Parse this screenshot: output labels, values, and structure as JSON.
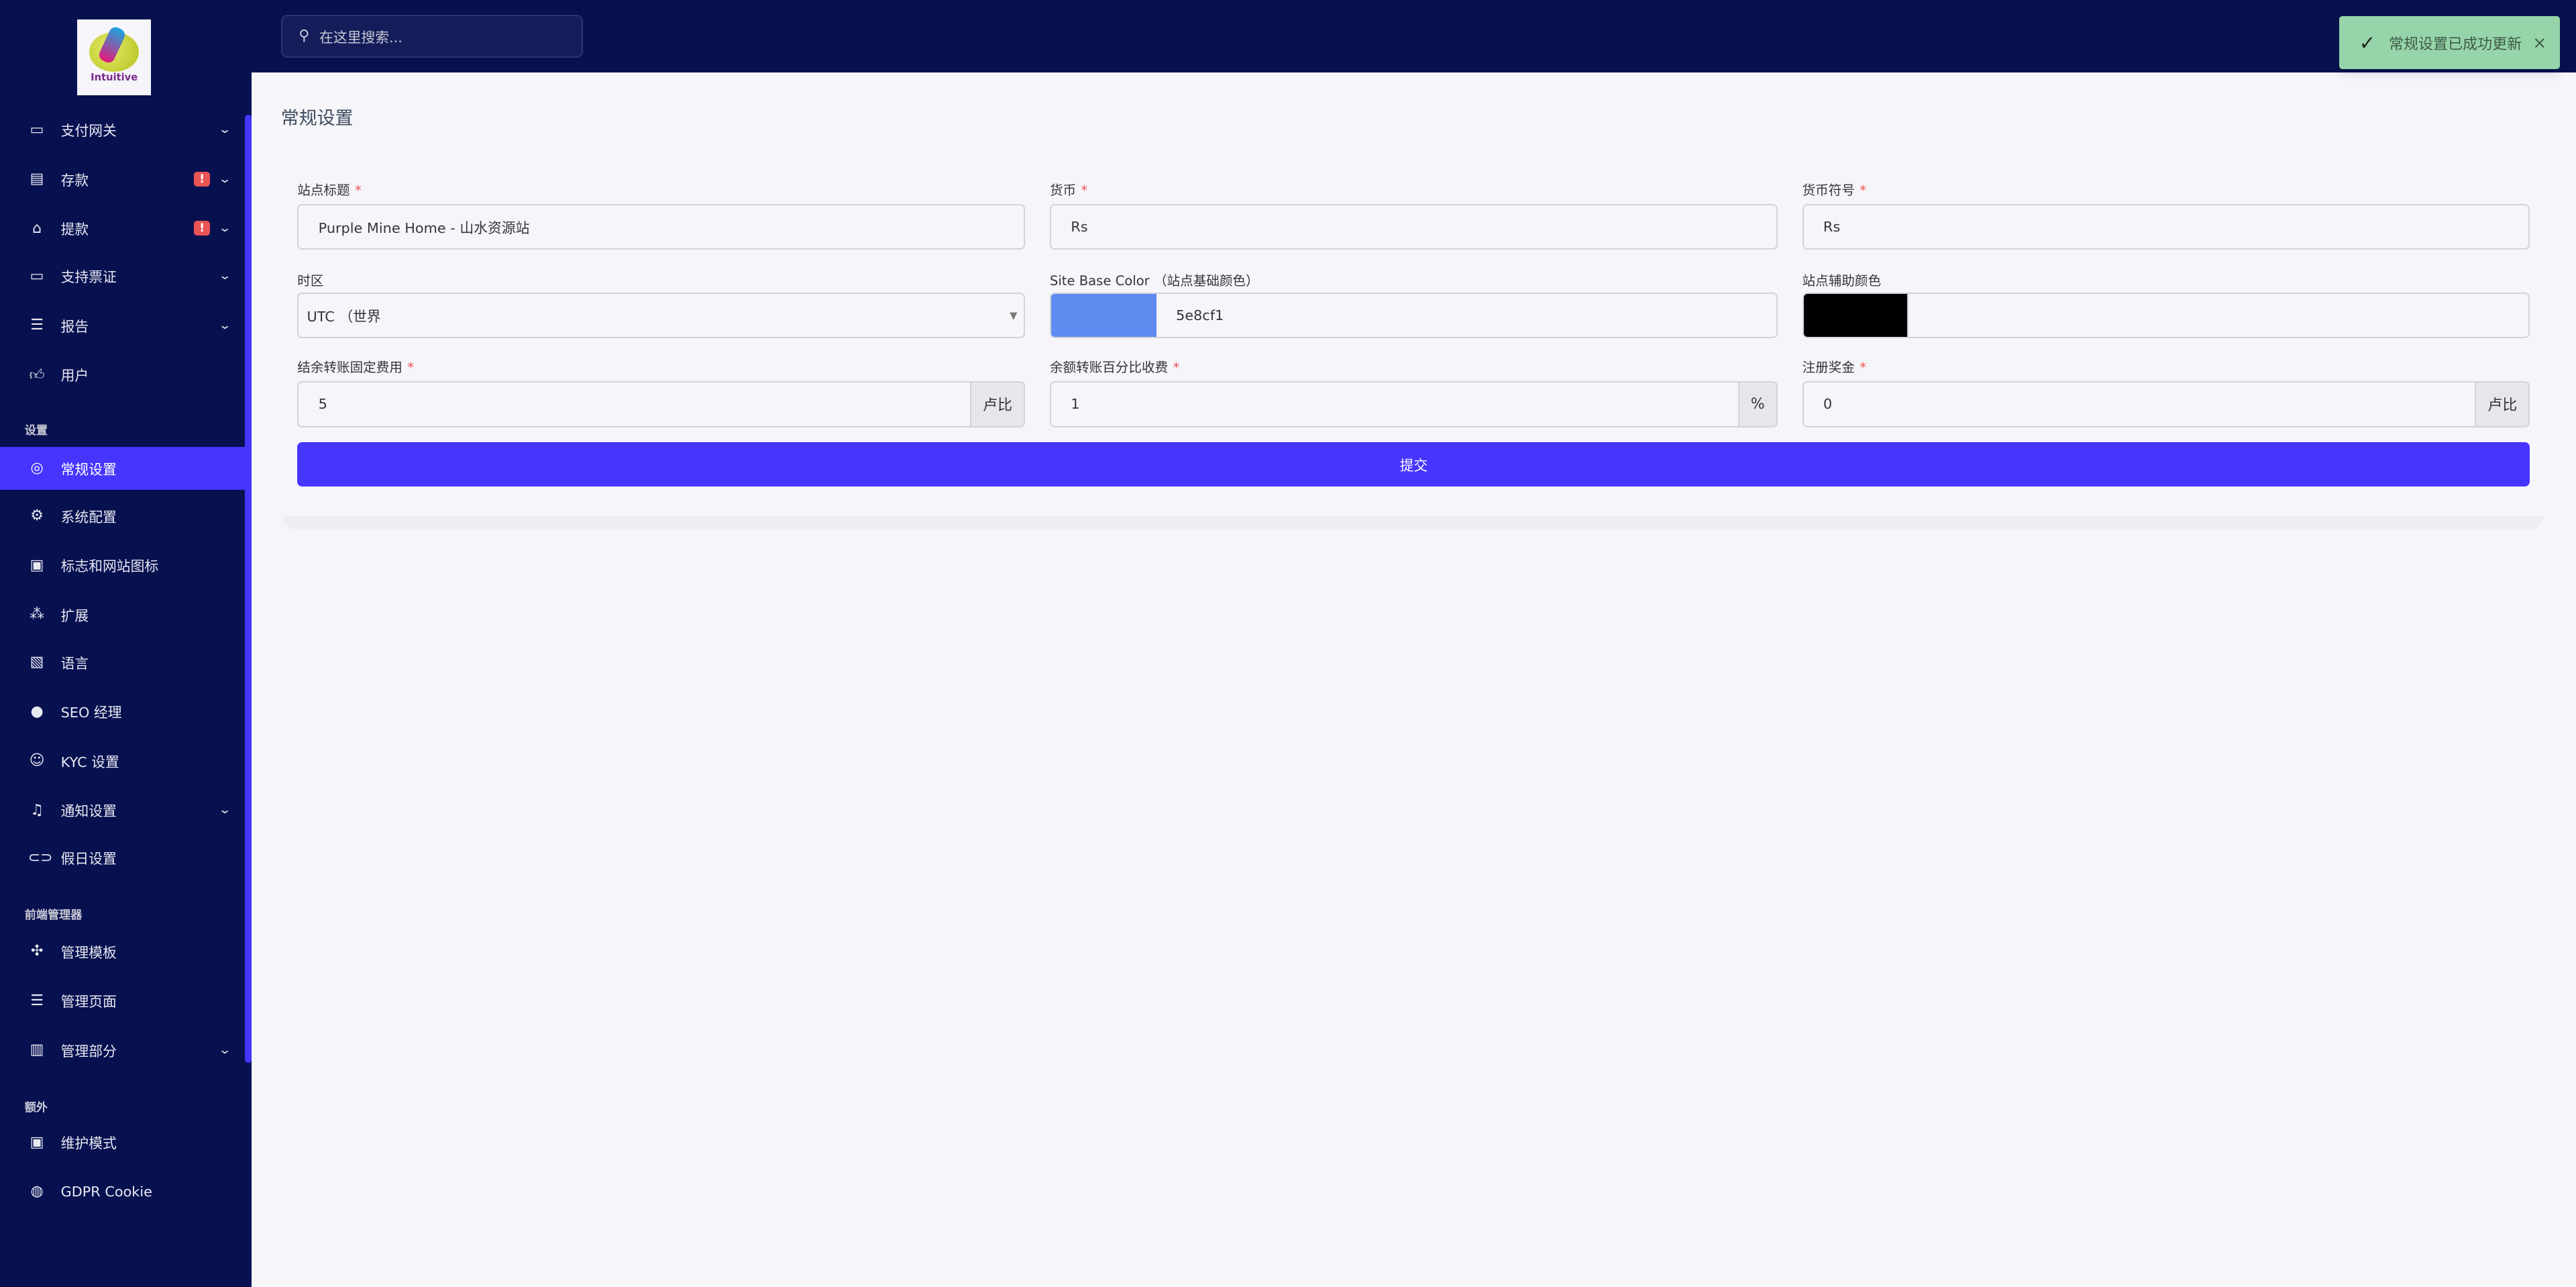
{
  "logo": {
    "text": "Intuitive"
  },
  "header": {
    "search_placeholder": "在这里搜索...",
    "search_icon": "search-icon"
  },
  "toast": {
    "message": "常规设置已成功更新",
    "icon": "check-icon",
    "close": "×",
    "color": "#95d5a9"
  },
  "sidebar": {
    "items": [
      {
        "label": "支付网关",
        "icon": "credit-card-icon",
        "chevron": true
      },
      {
        "label": "存款",
        "icon": "deposit-icon",
        "chevron": true,
        "badge": "!"
      },
      {
        "label": "提款",
        "icon": "bank-icon",
        "chevron": true,
        "badge": "!"
      },
      {
        "label": "支持票证",
        "icon": "ticket-icon",
        "chevron": true
      },
      {
        "label": "报告",
        "icon": "list-icon",
        "chevron": true
      },
      {
        "label": "用户",
        "icon": "thumbs-up-icon"
      }
    ],
    "section_settings": "设置",
    "settings_items": [
      {
        "label": "常规设置",
        "icon": "life-ring-icon",
        "active": true
      },
      {
        "label": "系统配置",
        "icon": "gear-icon"
      },
      {
        "label": "标志和网站图标",
        "icon": "image-icon"
      },
      {
        "label": "扩展",
        "icon": "cubes-icon"
      },
      {
        "label": "语言",
        "icon": "language-icon"
      },
      {
        "label": "SEO 经理",
        "icon": "globe-icon"
      },
      {
        "label": "KYC 设置",
        "icon": "user-check-icon"
      },
      {
        "label": "通知设置",
        "icon": "bell-icon",
        "chevron": true
      },
      {
        "label": "假日设置",
        "icon": "toggle-icon"
      }
    ],
    "section_frontend": "前端管理器",
    "frontend_items": [
      {
        "label": "管理模板",
        "icon": "puzzle-icon"
      },
      {
        "label": "管理页面",
        "icon": "list-icon"
      },
      {
        "label": "管理部分",
        "icon": "html5-icon",
        "chevron": true
      }
    ],
    "section_extra": "额外",
    "extra_items": [
      {
        "label": "维护模式",
        "icon": "robot-icon"
      },
      {
        "label": "GDPR Cookie",
        "icon": "cookie-icon"
      }
    ]
  },
  "page": {
    "title": "常规设置"
  },
  "form": {
    "site_title": {
      "label": "站点标题",
      "value": "Purple Mine Home - 山水资源站"
    },
    "currency": {
      "label": "货币",
      "value": "Rs"
    },
    "currency_symbol": {
      "label": "货币符号",
      "value": "Rs"
    },
    "timezone": {
      "label": "时区",
      "value": "UTC （世界"
    },
    "base_color": {
      "label": "Site Base Color （站点基础颜色）",
      "value": "5e8cf1",
      "swatch": "#5e8cf1"
    },
    "secondary_color": {
      "label": "站点辅助颜色",
      "value": "",
      "swatch": "#000000"
    },
    "fixed_charge": {
      "label": "结余转账固定费用",
      "value": "5",
      "suffix": "卢比"
    },
    "percent_charge": {
      "label": "余额转账百分比收费",
      "value": "1",
      "suffix": "%"
    },
    "signup_bonus": {
      "label": "注册奖金",
      "value": "0",
      "suffix": "卢比"
    },
    "required_mark": "*",
    "submit": "提交"
  },
  "colors": {
    "sidebar": "#071150",
    "accent": "#4634ff",
    "danger": "#ea5455"
  }
}
